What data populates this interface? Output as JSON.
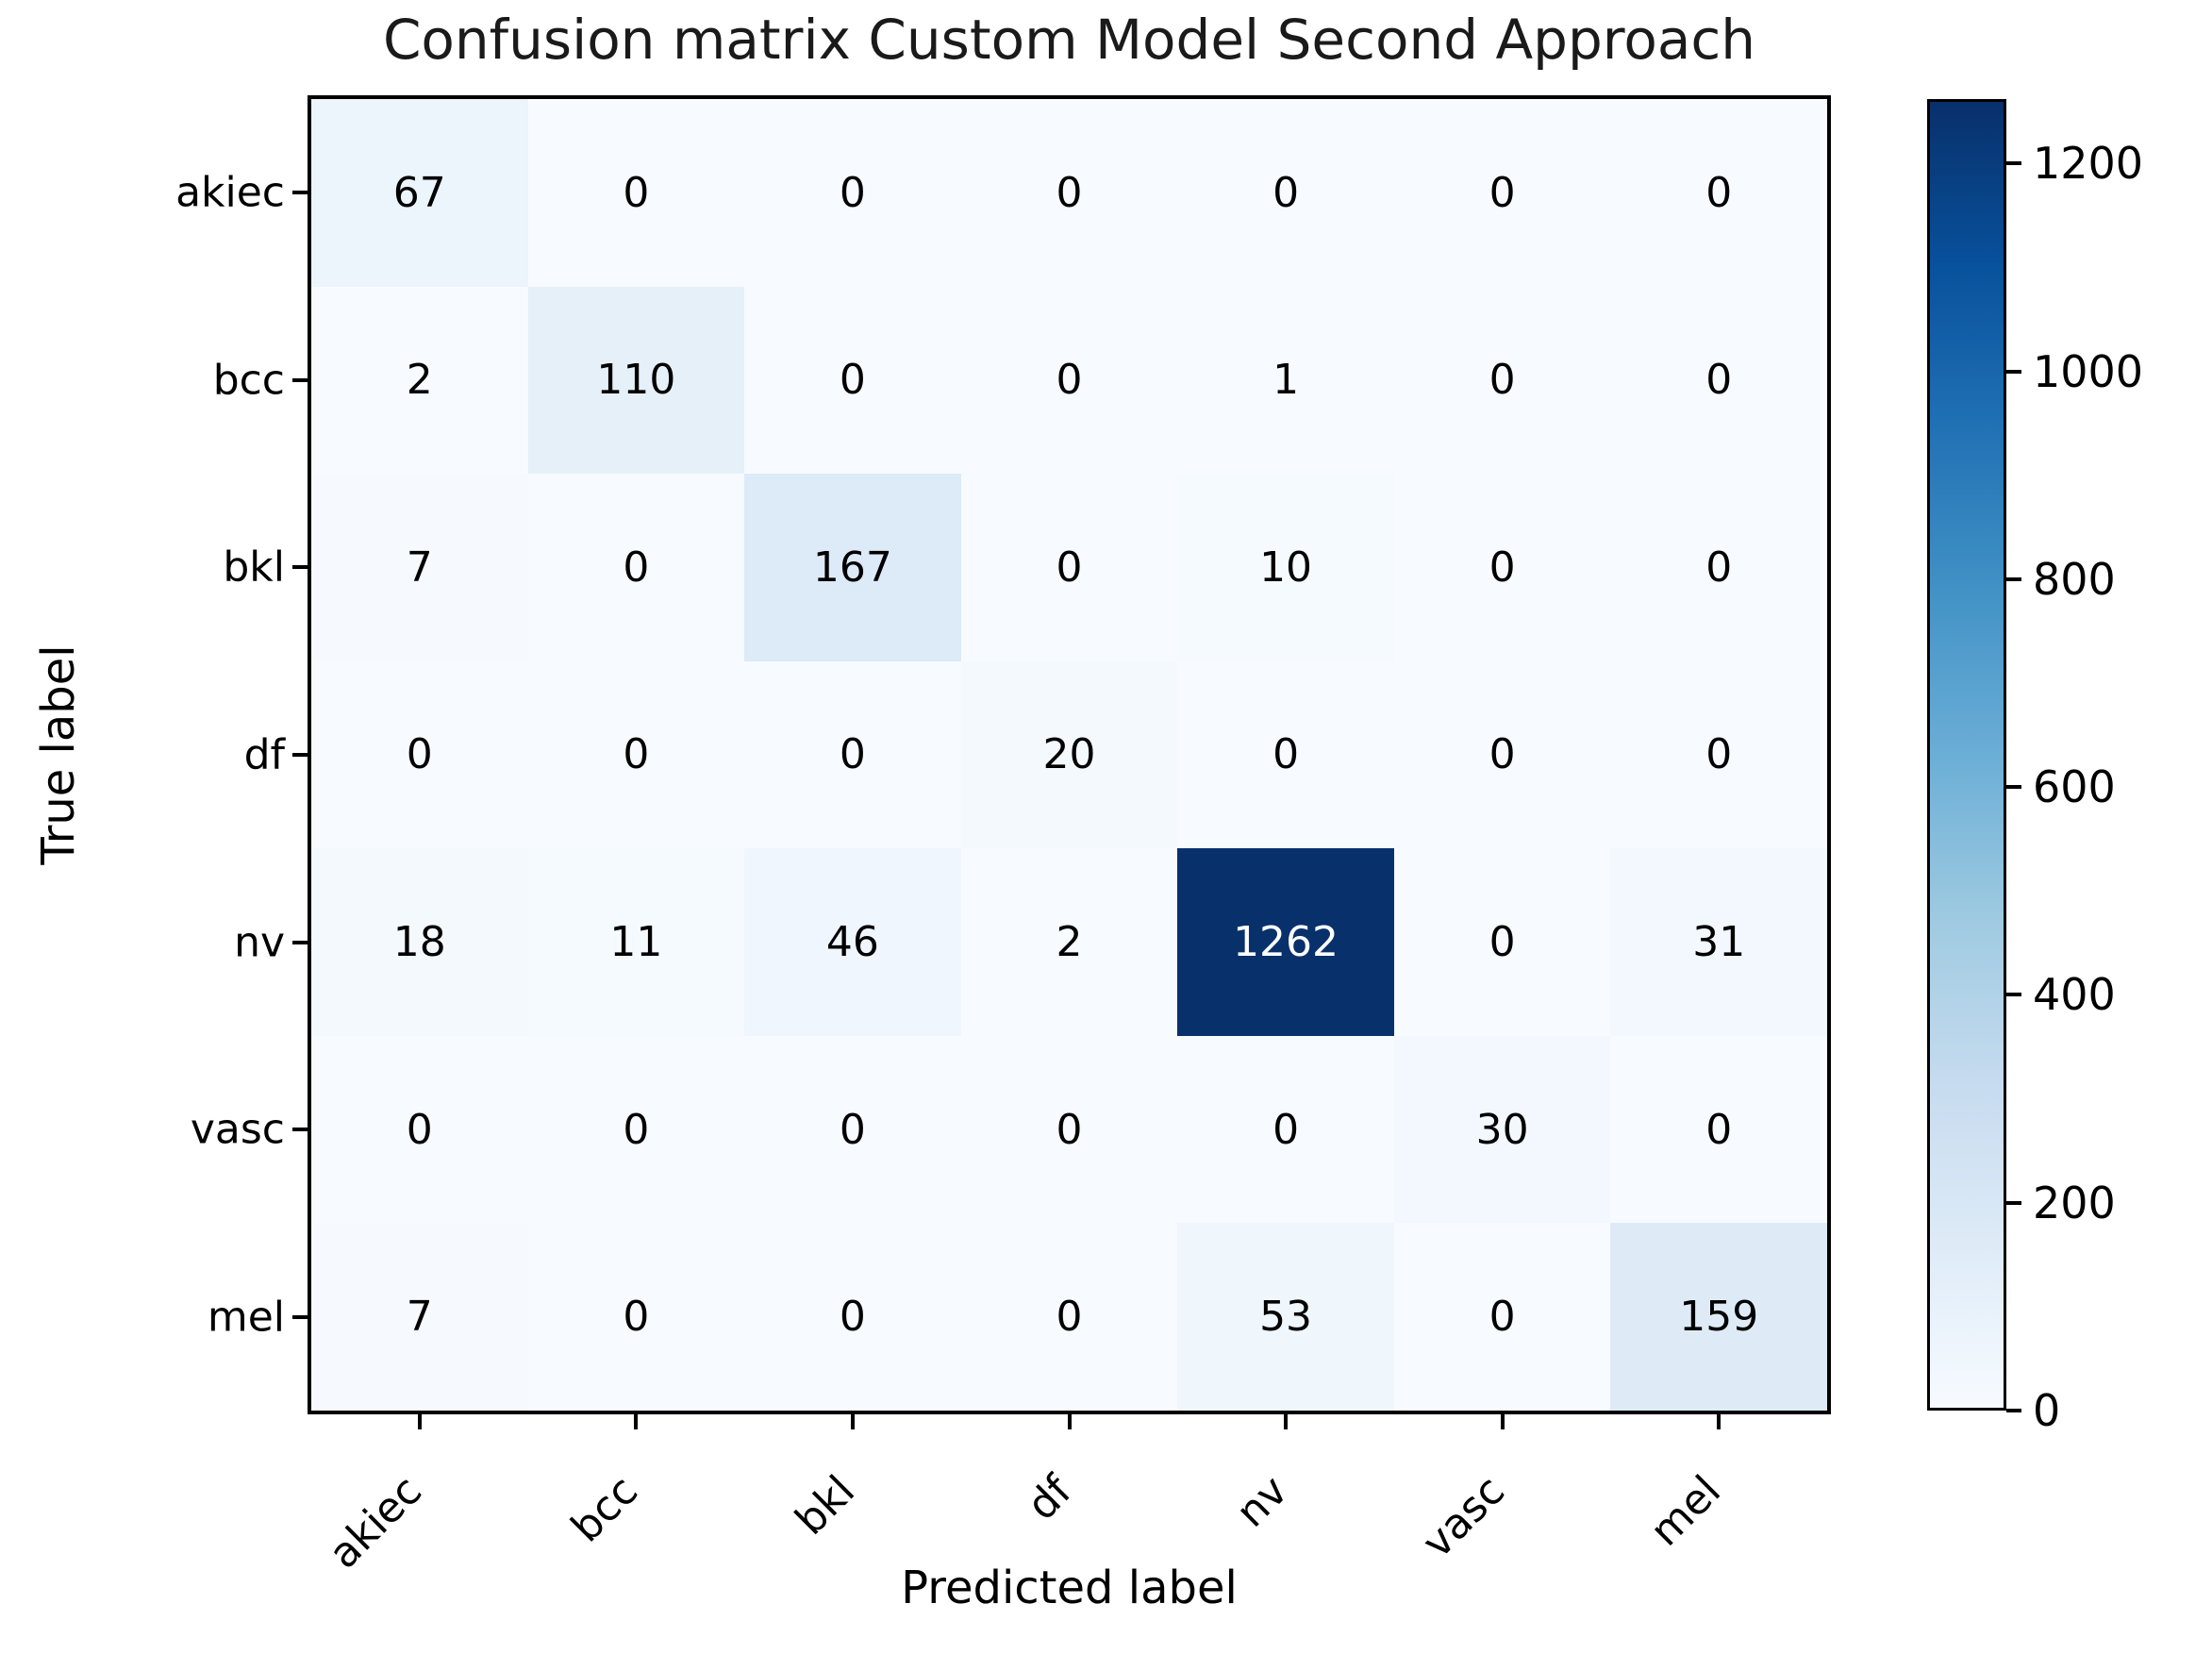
{
  "chart_data": {
    "type": "heatmap",
    "title": "Confusion matrix Custom Model Second Approach",
    "xlabel": "Predicted label",
    "ylabel": "True label",
    "x_categories": [
      "akiec",
      "bcc",
      "bkl",
      "df",
      "nv",
      "vasc",
      "mel"
    ],
    "y_categories": [
      "akiec",
      "bcc",
      "bkl",
      "df",
      "nv",
      "vasc",
      "mel"
    ],
    "values": [
      [
        67,
        0,
        0,
        0,
        0,
        0,
        0
      ],
      [
        2,
        110,
        0,
        0,
        1,
        0,
        0
      ],
      [
        7,
        0,
        167,
        0,
        10,
        0,
        0
      ],
      [
        0,
        0,
        0,
        20,
        0,
        0,
        0
      ],
      [
        18,
        11,
        46,
        2,
        1262,
        0,
        31
      ],
      [
        0,
        0,
        0,
        0,
        0,
        30,
        0
      ],
      [
        7,
        0,
        0,
        0,
        53,
        0,
        159
      ]
    ],
    "vmin": 0,
    "vmax": 1262,
    "colormap": "Blues",
    "colorbar_ticks": [
      0,
      200,
      400,
      600,
      800,
      1000,
      1200
    ],
    "x_tick_rotation_deg": 45,
    "grid": false,
    "legend_position": "right-colorbar"
  },
  "colors": {
    "background": "#ffffff",
    "frame": "#000000",
    "cell_text_dark": "#000000",
    "cell_text_light": "#ffffff",
    "cmap_anchors": [
      [
        0.0,
        "#f7fbff"
      ],
      [
        0.125,
        "#deebf7"
      ],
      [
        0.25,
        "#c6dbef"
      ],
      [
        0.375,
        "#9ecae1"
      ],
      [
        0.5,
        "#6baed6"
      ],
      [
        0.625,
        "#4292c6"
      ],
      [
        0.75,
        "#2171b5"
      ],
      [
        0.875,
        "#08519c"
      ],
      [
        1.0,
        "#08306b"
      ]
    ]
  }
}
